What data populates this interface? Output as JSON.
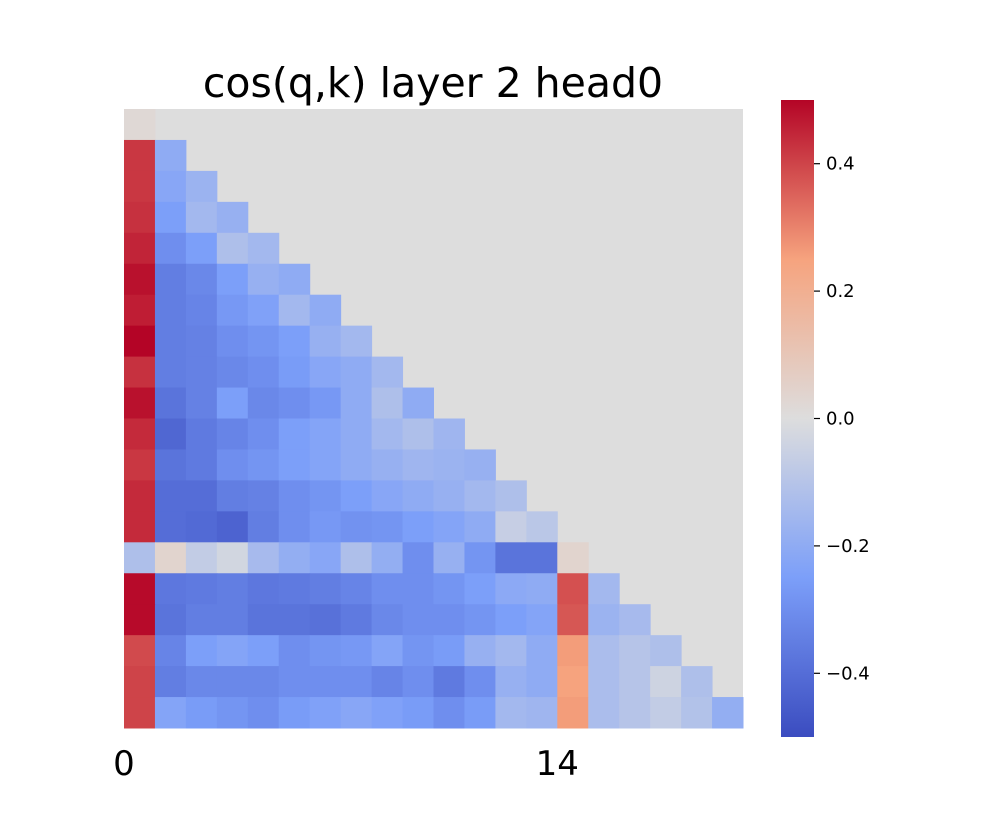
{
  "chart_data": {
    "type": "heatmap",
    "title": "cos(q,k) layer 2 head0",
    "mask": "upper-triangle",
    "mask_color": "#dddddd",
    "rows": 20,
    "cols": 20,
    "x_ticks": [
      {
        "index": 0,
        "label": "0"
      },
      {
        "index": 14,
        "label": "14"
      }
    ],
    "colormap": "coolwarm",
    "vmin": -0.5,
    "vmax": 0.5,
    "colorbar": {
      "ticks": [
        {
          "value": 0.4,
          "label": "0.4"
        },
        {
          "value": 0.2,
          "label": "0.2"
        },
        {
          "value": 0.0,
          "label": "0.0"
        },
        {
          "value": -0.2,
          "label": "−0.2"
        },
        {
          "value": -0.4,
          "label": "−0.4"
        }
      ]
    },
    "values": [
      [
        0.02
      ],
      [
        0.42,
        -0.2
      ],
      [
        0.42,
        -0.22,
        -0.17
      ],
      [
        0.43,
        -0.25,
        -0.15,
        -0.18
      ],
      [
        0.45,
        -0.3,
        -0.25,
        -0.12,
        -0.15
      ],
      [
        0.48,
        -0.35,
        -0.32,
        -0.25,
        -0.18,
        -0.2
      ],
      [
        0.46,
        -0.35,
        -0.33,
        -0.27,
        -0.24,
        -0.15,
        -0.2
      ],
      [
        0.5,
        -0.35,
        -0.34,
        -0.3,
        -0.28,
        -0.25,
        -0.18,
        -0.15
      ],
      [
        0.43,
        -0.35,
        -0.34,
        -0.32,
        -0.3,
        -0.26,
        -0.22,
        -0.2,
        -0.15
      ],
      [
        0.48,
        -0.38,
        -0.34,
        -0.25,
        -0.32,
        -0.3,
        -0.27,
        -0.2,
        -0.12,
        -0.2
      ],
      [
        0.44,
        -0.42,
        -0.36,
        -0.33,
        -0.3,
        -0.25,
        -0.23,
        -0.2,
        -0.15,
        -0.12,
        -0.16
      ],
      [
        0.42,
        -0.38,
        -0.36,
        -0.3,
        -0.28,
        -0.25,
        -0.23,
        -0.2,
        -0.18,
        -0.16,
        -0.17,
        -0.18
      ],
      [
        0.44,
        -0.4,
        -0.4,
        -0.35,
        -0.34,
        -0.3,
        -0.28,
        -0.25,
        -0.22,
        -0.2,
        -0.18,
        -0.15,
        -0.12
      ],
      [
        0.44,
        -0.4,
        -0.41,
        -0.43,
        -0.35,
        -0.3,
        -0.27,
        -0.29,
        -0.28,
        -0.25,
        -0.23,
        -0.2,
        -0.06,
        -0.09
      ],
      [
        -0.12,
        0.04,
        -0.07,
        -0.03,
        -0.14,
        -0.19,
        -0.22,
        -0.12,
        -0.19,
        -0.3,
        -0.18,
        -0.28,
        -0.38,
        -0.38,
        0.04
      ],
      [
        0.49,
        -0.37,
        -0.36,
        -0.35,
        -0.37,
        -0.36,
        -0.35,
        -0.33,
        -0.3,
        -0.3,
        -0.28,
        -0.25,
        -0.21,
        -0.2,
        0.38,
        -0.15
      ],
      [
        0.49,
        -0.38,
        -0.35,
        -0.35,
        -0.38,
        -0.38,
        -0.39,
        -0.36,
        -0.32,
        -0.3,
        -0.3,
        -0.28,
        -0.25,
        -0.23,
        0.37,
        -0.17,
        -0.14
      ],
      [
        0.39,
        -0.33,
        -0.25,
        -0.23,
        -0.25,
        -0.3,
        -0.28,
        -0.27,
        -0.23,
        -0.28,
        -0.26,
        -0.18,
        -0.15,
        -0.2,
        0.26,
        -0.13,
        -0.1,
        -0.12
      ],
      [
        0.4,
        -0.35,
        -0.32,
        -0.32,
        -0.32,
        -0.3,
        -0.3,
        -0.3,
        -0.33,
        -0.3,
        -0.36,
        -0.3,
        -0.18,
        -0.2,
        0.25,
        -0.13,
        -0.1,
        -0.04,
        -0.12
      ],
      [
        0.4,
        -0.23,
        -0.26,
        -0.28,
        -0.3,
        -0.26,
        -0.24,
        -0.22,
        -0.24,
        -0.26,
        -0.3,
        -0.26,
        -0.15,
        -0.16,
        0.26,
        -0.13,
        -0.1,
        -0.07,
        -0.11,
        -0.19
      ]
    ]
  }
}
